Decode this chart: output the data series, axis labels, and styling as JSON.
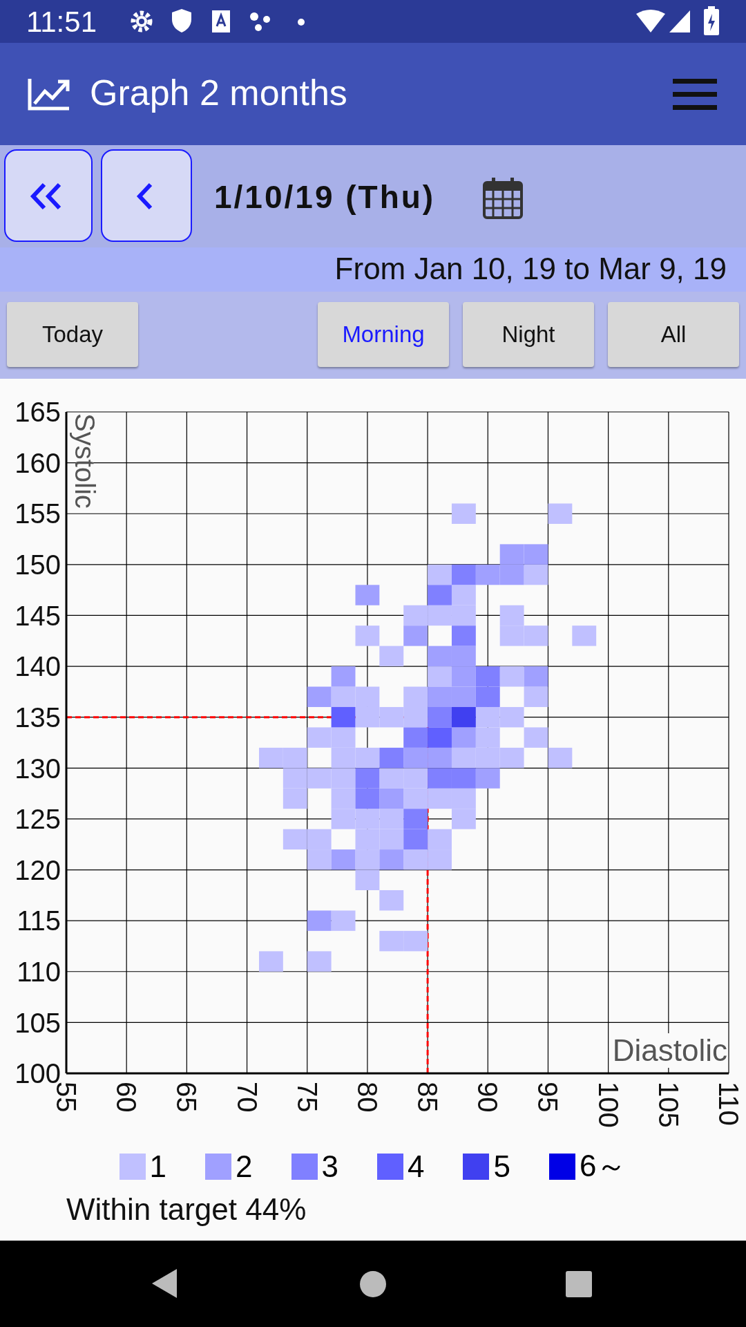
{
  "chart_data": {
    "type": "scatter",
    "title": "Graph 2 months",
    "subtitle": "From Jan 10, 19 to Mar 9, 19",
    "xlabel": "Diastolic",
    "ylabel": "Systolic",
    "xlim": [
      55,
      110
    ],
    "xticks": [
      55,
      60,
      65,
      70,
      75,
      80,
      85,
      90,
      95,
      100,
      105,
      110
    ],
    "ylim": [
      100,
      165
    ],
    "yticks": [
      100,
      105,
      110,
      115,
      120,
      125,
      130,
      135,
      140,
      145,
      150,
      155,
      160,
      165
    ],
    "grid": true,
    "legend": "bottom",
    "marker": "square",
    "ref_lines": [
      {
        "axis": "x",
        "value": 85,
        "color": "#ff0000",
        "line_style": "dashed"
      },
      {
        "axis": "y",
        "value": 135,
        "color": "#ff0000",
        "line_style": "dashed"
      }
    ],
    "annotations": [
      "11:51",
      "1/10/19 (Thu)",
      "Today",
      "Morning",
      "Night",
      "All",
      "Within target 44%"
    ],
    "series": [
      {
        "name": "1",
        "color": "#c0c0ff",
        "x": [
          88,
          96,
          94,
          86,
          88,
          84,
          86,
          88,
          92,
          80,
          92,
          94,
          98,
          82,
          86,
          92,
          78,
          80,
          84,
          94,
          80,
          82,
          84,
          90,
          92,
          76,
          78,
          90,
          94,
          72,
          74,
          78,
          80,
          88,
          90,
          92,
          96,
          74,
          76,
          78,
          82,
          84,
          74,
          78,
          84,
          86,
          88,
          78,
          80,
          82,
          88,
          74,
          76,
          80,
          82,
          86,
          76,
          80,
          84,
          86,
          80,
          82,
          78,
          82,
          84,
          72,
          76
        ],
        "values": [
          155,
          155,
          149,
          149,
          147,
          145,
          145,
          145,
          145,
          143,
          143,
          143,
          143,
          141,
          139,
          139,
          137,
          137,
          137,
          137,
          135,
          135,
          135,
          135,
          135,
          133,
          133,
          133,
          133,
          131,
          131,
          131,
          131,
          131,
          131,
          131,
          131,
          129,
          129,
          129,
          129,
          129,
          127,
          127,
          127,
          127,
          127,
          125,
          125,
          125,
          125,
          123,
          123,
          123,
          123,
          123,
          121,
          121,
          121,
          121,
          119,
          117,
          115,
          113,
          113,
          111,
          111
        ]
      },
      {
        "name": "2",
        "color": "#a0a0ff",
        "x": [
          92,
          94,
          90,
          92,
          80,
          84,
          86,
          88,
          78,
          88,
          94,
          76,
          86,
          88,
          88,
          84,
          86,
          90,
          82,
          78,
          82,
          76
        ],
        "values": [
          151,
          151,
          149,
          149,
          147,
          143,
          141,
          141,
          139,
          139,
          139,
          137,
          137,
          137,
          133,
          131,
          131,
          129,
          127,
          121,
          121,
          115
        ]
      },
      {
        "name": "3",
        "color": "#8080ff",
        "x": [
          88,
          86,
          88,
          90,
          90,
          86,
          84,
          82,
          80,
          86,
          88,
          80,
          84,
          84
        ],
        "values": [
          149,
          147,
          143,
          139,
          137,
          135,
          133,
          131,
          129,
          129,
          129,
          127,
          125,
          123
        ]
      },
      {
        "name": "4",
        "color": "#6060ff",
        "x": [
          78,
          86
        ],
        "values": [
          135,
          133
        ]
      },
      {
        "name": "5",
        "color": "#4040f0",
        "x": [
          88
        ],
        "values": [
          135
        ]
      },
      {
        "name": "6～",
        "color": "#0000e6"
      }
    ]
  }
}
